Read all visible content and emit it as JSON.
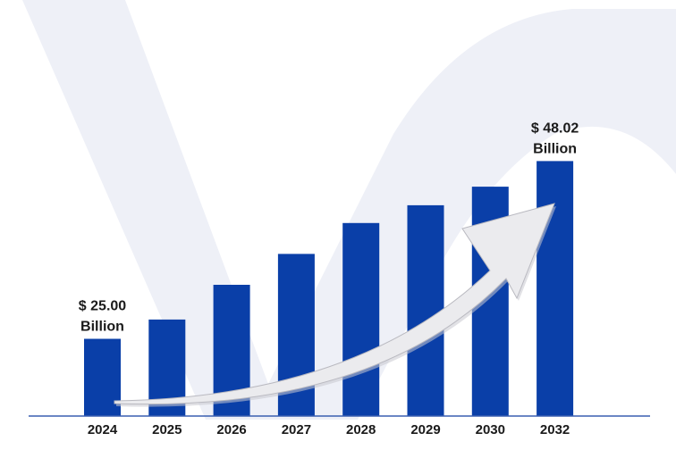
{
  "chart_data": {
    "type": "bar",
    "categories": [
      "2024",
      "2025",
      "2026",
      "2027",
      "2028",
      "2029",
      "2030",
      "2032"
    ],
    "values": [
      25.0,
      27.5,
      32.0,
      36.0,
      40.0,
      42.3,
      44.7,
      48.02
    ],
    "ylim": [
      15,
      52
    ],
    "grid": false,
    "legend": "none",
    "annotations": [
      {
        "category": "2024",
        "line1": "$ 25.00",
        "line2": "Billion"
      },
      {
        "category": "2032",
        "line1": "$ 48.02",
        "line2": "Billion"
      }
    ],
    "trend_arrow": "upward"
  },
  "colors": {
    "bar": "#0a3fa8",
    "axis": "#3a5fb0",
    "watermark": "#eef0f7",
    "arrow_fill": "#ebebee",
    "arrow_stroke": "#b9b9c0"
  }
}
